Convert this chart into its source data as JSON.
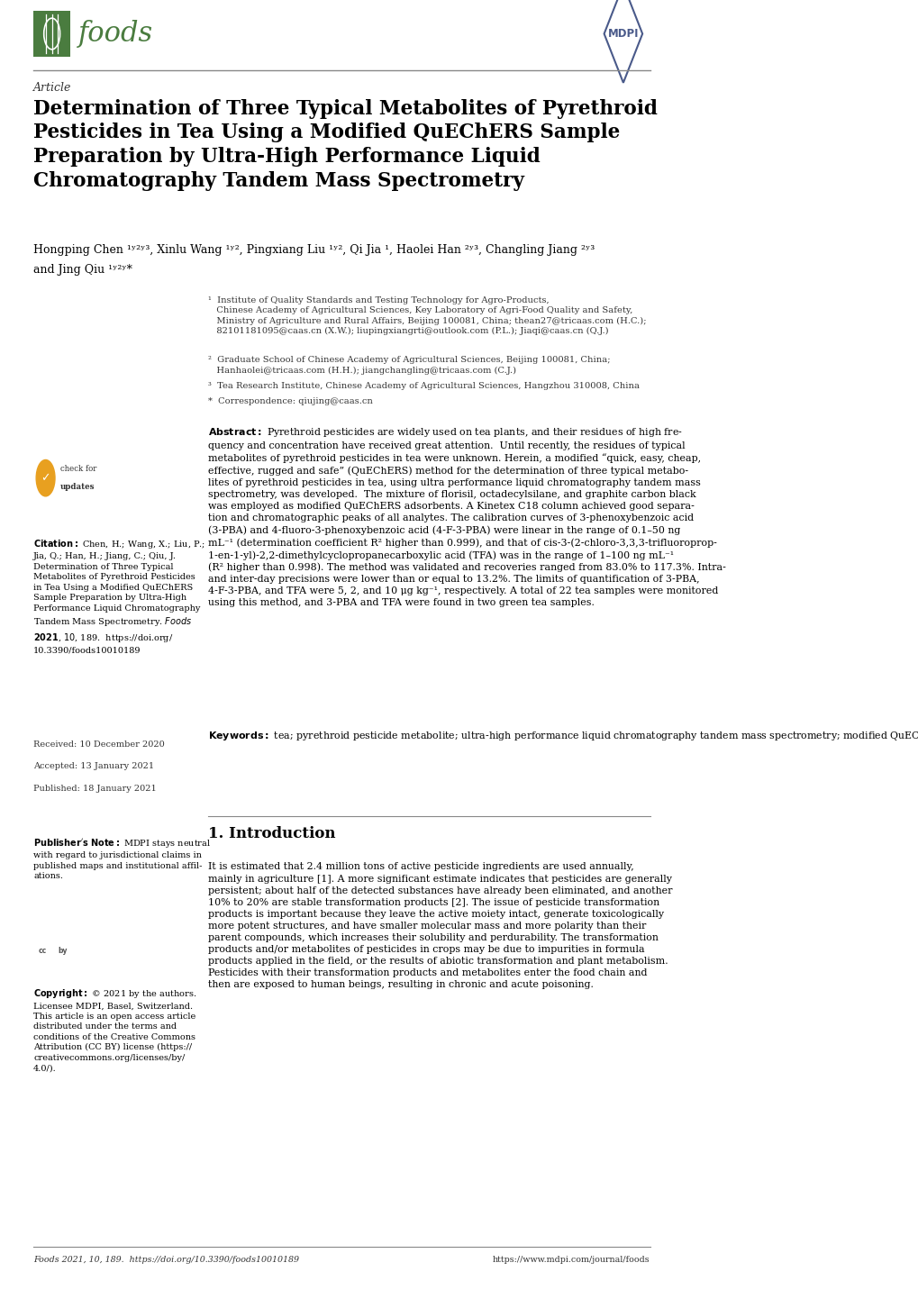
{
  "background_color": "#ffffff",
  "page_width": 10.2,
  "page_height": 14.42,
  "foods_logo_color": "#4a7c3f",
  "mdpi_logo_color": "#4a5a8a",
  "article_label": "Article",
  "title": "Determination of Three Typical Metabolites of Pyrethroid\nPesticides in Tea Using a Modified QuEChERS Sample\nPreparation by Ultra-High Performance Liquid\nChromatography Tandem Mass Spectrometry",
  "authors": "Hongping Chen ¹ʸ²ʸ³, Xinlu Wang ¹ʸ², Pingxiang Liu ¹ʸ², Qi Jia ¹, Haolei Han ²ʸ³, Changling Jiang ²ʸ³",
  "authors2": "and Jing Qiu ¹ʸ²ʸ*",
  "affil1": "¹  Institute of Quality Standards and Testing Technology for Agro-Products,\n   Chinese Academy of Agricultural Sciences, Key Laboratory of Agri-Food Quality and Safety,\n   Ministry of Agriculture and Rural Affairs, Beijing 100081, China; thean27@tricaas.com (H.C.);\n   82101181095@caas.cn (X.W.); liupingxiangrti@outlook.com (P.L.); Jiaqi@caas.cn (Q.J.)",
  "affil2": "²  Graduate School of Chinese Academy of Agricultural Sciences, Beijing 100081, China;\n   Hanhaolei@tricaas.com (H.H.); jiangchangling@tricaas.com (C.J.)",
  "affil3": "³  Tea Research Institute, Chinese Academy of Agricultural Sciences, Hangzhou 310008, China",
  "affil4": "*  Correspondence: qiujing@caas.cn",
  "received_text": "Received: 10 December 2020",
  "accepted_text": "Accepted: 13 January 2021",
  "published_text": "Published: 18 January 2021",
  "section_title": "1. Introduction",
  "footer_left": "Foods 2021, 10, 189.  https://doi.org/10.3390/foods10010189",
  "footer_right": "https://www.mdpi.com/journal/foods",
  "keywords_text": " tea; pyrethroid pesticide metabolite; ultra-high performance liquid chromatography tandem mass spectrometry; modified QuEChERS"
}
